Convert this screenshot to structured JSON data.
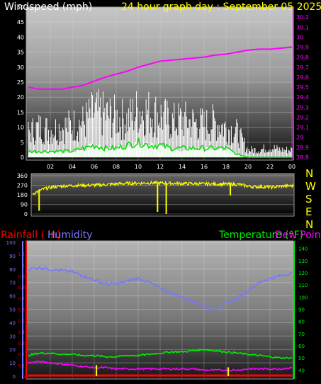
{
  "titles": {
    "windspeed": "Windspeed (mph)",
    "graph": "24 hour graph day : September 05 2025",
    "rainfall": "Rainfall ( in)",
    "humidity": "Humidity",
    "temperature": "Temperature (°F)",
    "dewpoint": "Dew Point"
  },
  "colors": {
    "wind": "#ffffff",
    "gust": "#ffffff",
    "wind_avg": "#00dd00",
    "wind_fill": "#ccffcc",
    "pressure": "#ff00ff",
    "direction": "#ffff00",
    "rain_axis": "#ff0000",
    "rain_bar": "#ffff00",
    "humidity": "#7777ff",
    "temperature": "#00ee00",
    "dewpoint": "#ff00ff",
    "rainfall_line": "#ff0000"
  },
  "chart_data": [
    {
      "type": "line",
      "name": "wind-pressure",
      "x_ticks": [
        "02",
        "04",
        "06",
        "08",
        "10",
        "12",
        "14",
        "16",
        "18",
        "20",
        "22",
        "00"
      ],
      "y_left_ticks": [
        "0",
        "5",
        "10",
        "15",
        "20",
        "25",
        "30",
        "35",
        "40",
        "45",
        "50"
      ],
      "y_right_ticks": [
        "28.8",
        "28.9",
        "29",
        "29.1",
        "29.2",
        "29.3",
        "29.4",
        "29.5",
        "29.6",
        "29.7",
        "29.8",
        "29.9",
        "30",
        "30.1",
        "30.2"
      ],
      "ylim_left": [
        0,
        50
      ],
      "ylim_right": [
        28.8,
        30.3
      ],
      "xlim_hours": [
        0,
        24
      ],
      "pressure": {
        "hours": [
          0,
          1,
          2,
          3,
          4,
          5,
          6,
          7,
          8,
          9,
          10,
          11,
          12,
          13,
          14,
          15,
          16,
          17,
          18,
          19,
          20,
          21,
          22,
          23,
          24
        ],
        "values": [
          29.5,
          29.48,
          29.48,
          29.48,
          29.5,
          29.52,
          29.56,
          29.6,
          29.63,
          29.66,
          29.7,
          29.73,
          29.76,
          29.77,
          29.78,
          29.79,
          29.8,
          29.82,
          29.83,
          29.85,
          29.87,
          29.88,
          29.88,
          29.89,
          29.9
        ]
      },
      "gust": {
        "hours": [
          0,
          1,
          2,
          3,
          4,
          5,
          6,
          7,
          8,
          9,
          10,
          11,
          12,
          13,
          14,
          15,
          16,
          17,
          18,
          19,
          20,
          21,
          22,
          23,
          24
        ],
        "values": [
          10,
          12,
          11,
          12,
          13,
          14,
          18,
          17,
          16,
          15,
          19,
          18,
          17,
          14,
          15,
          14,
          13,
          14,
          12,
          10,
          3,
          3,
          4,
          3,
          3
        ]
      },
      "wind_avg": {
        "hours": [
          0,
          1,
          2,
          3,
          4,
          5,
          6,
          7,
          8,
          9,
          10,
          11,
          12,
          13,
          14,
          15,
          16,
          17,
          18,
          19,
          20,
          21,
          22,
          23,
          24
        ],
        "values": [
          2,
          2,
          2,
          2,
          2,
          3,
          4,
          3,
          3,
          4,
          5,
          4,
          4,
          3,
          3,
          3,
          3,
          3,
          3,
          1,
          0,
          0,
          0,
          0,
          0
        ]
      }
    },
    {
      "type": "line",
      "name": "wind-direction",
      "x_ticks": [],
      "y_ticks": [
        "0",
        "90",
        "180",
        "270",
        "360"
      ],
      "compass": [
        "N",
        "W",
        "S",
        "E",
        "N"
      ],
      "ylim": [
        0,
        360
      ],
      "xlim_hours": [
        0,
        24
      ],
      "direction": {
        "hours": [
          0,
          1,
          2,
          3,
          4,
          5,
          6,
          7,
          8,
          9,
          10,
          11,
          12,
          13,
          14,
          15,
          16,
          17,
          18,
          19,
          20,
          21,
          22,
          23,
          24
        ],
        "values": [
          190,
          235,
          255,
          265,
          268,
          270,
          272,
          278,
          284,
          288,
          290,
          292,
          290,
          288,
          286,
          284,
          282,
          282,
          280,
          278,
          258,
          256,
          252,
          262,
          265
        ]
      },
      "spikes": [
        {
          "hour": 0.6,
          "value": 30
        },
        {
          "hour": 11.5,
          "value": 20
        },
        {
          "hour": 12.3,
          "value": 0
        },
        {
          "hour": 18.2,
          "value": 175
        }
      ]
    },
    {
      "type": "line",
      "name": "rain-humidity-temperature",
      "x_ticks": [],
      "y_left_humidity_ticks": [
        "0",
        "10",
        "20",
        "30",
        "40",
        "50",
        "60",
        "70",
        "80",
        "90",
        "100"
      ],
      "y_left_rain_ticks": [
        "0",
        "0.1",
        "0.2",
        "0.3",
        "0.4",
        "0.5",
        "0.6",
        "0.7",
        "0.8",
        "0.9",
        "1",
        "1.1"
      ],
      "y_right_ticks": [
        "40",
        "50",
        "60",
        "70",
        "80",
        "90",
        "100",
        "110",
        "120",
        "130",
        "140"
      ],
      "ylim_humidity": [
        0,
        100
      ],
      "ylim_rain": [
        0,
        1.2
      ],
      "ylim_temperature": [
        35,
        145
      ],
      "xlim_hours": [
        0,
        24
      ],
      "humidity": {
        "hours": [
          0,
          1,
          2,
          3,
          4,
          5,
          6,
          7,
          8,
          9,
          10,
          11,
          12,
          13,
          14,
          15,
          16,
          17,
          18,
          19,
          20,
          21,
          22,
          23,
          24
        ],
        "values": [
          80,
          81,
          80,
          79,
          78,
          75,
          72,
          69,
          69,
          71,
          73,
          70,
          66,
          62,
          59,
          56,
          52,
          50,
          54,
          58,
          64,
          70,
          73,
          75,
          77
        ]
      },
      "temperature": {
        "hours": [
          0,
          1,
          2,
          3,
          4,
          5,
          6,
          7,
          8,
          9,
          10,
          11,
          12,
          13,
          14,
          15,
          16,
          17,
          18,
          19,
          20,
          21,
          22,
          23,
          24
        ],
        "values": [
          52,
          54,
          54,
          53,
          53,
          52,
          52,
          51,
          51,
          52,
          52,
          53,
          54,
          55,
          55,
          56,
          57,
          56,
          55,
          54,
          53,
          52,
          51,
          50,
          50
        ]
      },
      "dewpoint": {
        "hours": [
          0,
          1,
          2,
          3,
          4,
          5,
          6,
          7,
          8,
          9,
          10,
          11,
          12,
          13,
          14,
          15,
          16,
          17,
          18,
          19,
          20,
          21,
          22,
          23,
          24
        ],
        "values": [
          46,
          47,
          46,
          45,
          44,
          43,
          42,
          42,
          41,
          41,
          41,
          41,
          41,
          41,
          41,
          41,
          40,
          40,
          40,
          40,
          41,
          41,
          41,
          41,
          42
        ]
      },
      "rainfall": {
        "hours": [
          0,
          24
        ],
        "values": [
          0,
          0
        ]
      },
      "rain_markers": [
        {
          "hour": 6.2,
          "value": 0.1
        },
        {
          "hour": 18.2,
          "value": 0.08
        }
      ]
    }
  ]
}
